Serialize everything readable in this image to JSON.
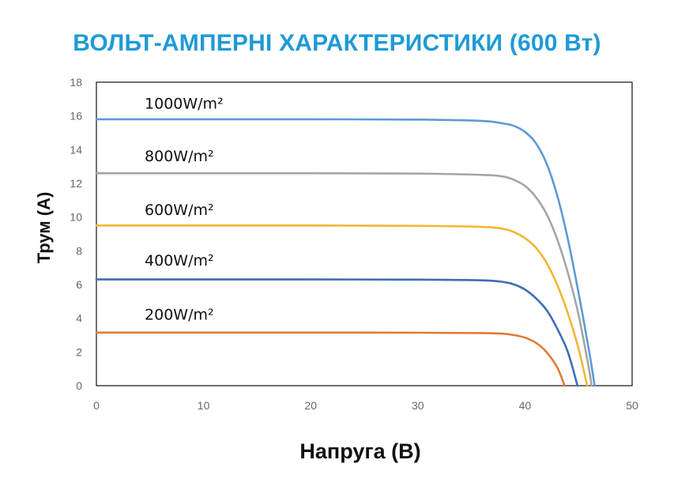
{
  "chart_data": {
    "type": "line",
    "title": "ВОЛЬТ-АМПЕРНІ ХАРАКТЕРИСТИКИ (600 Вт)",
    "xlabel": "Напруга (В)",
    "ylabel": "Трум (А)",
    "xlim": [
      0,
      50
    ],
    "ylim": [
      0,
      18
    ],
    "x_ticks": [
      "0",
      "10",
      "20",
      "30",
      "40",
      "50"
    ],
    "y_ticks": [
      "0",
      "2",
      "4",
      "6",
      "8",
      "10",
      "12",
      "14",
      "16",
      "18"
    ],
    "grid": false,
    "series": [
      {
        "name": "1000W/m²",
        "color": "#5b9bd5",
        "x": [
          0,
          10,
          20,
          30,
          36,
          38,
          39,
          40,
          41,
          42,
          43,
          44,
          45,
          46,
          46.5
        ],
        "y": [
          15.8,
          15.8,
          15.8,
          15.78,
          15.7,
          15.55,
          15.4,
          15.05,
          14.4,
          13.2,
          11.3,
          8.7,
          5.5,
          2.0,
          0
        ]
      },
      {
        "name": "800W/m²",
        "color": "#a5a5a5",
        "x": [
          0,
          10,
          20,
          30,
          36,
          38,
          39,
          40,
          41,
          42,
          43,
          44,
          45,
          46,
          46.2
        ],
        "y": [
          12.6,
          12.6,
          12.6,
          12.58,
          12.5,
          12.4,
          12.2,
          11.85,
          11.2,
          10.2,
          8.7,
          6.7,
          4.2,
          0.9,
          0
        ]
      },
      {
        "name": "600W/m²",
        "color": "#f2b632",
        "x": [
          0,
          10,
          20,
          30,
          36,
          38,
          39,
          40,
          41,
          42,
          43,
          44,
          45,
          45.8
        ],
        "y": [
          9.5,
          9.5,
          9.5,
          9.48,
          9.42,
          9.3,
          9.1,
          8.75,
          8.2,
          7.3,
          6.0,
          4.3,
          2.2,
          0
        ]
      },
      {
        "name": "400W/m²",
        "color": "#3d6db5",
        "x": [
          0,
          10,
          20,
          30,
          36,
          38,
          39,
          40,
          41,
          42,
          43,
          44,
          44.9
        ],
        "y": [
          6.3,
          6.3,
          6.3,
          6.29,
          6.25,
          6.15,
          6.0,
          5.7,
          5.2,
          4.5,
          3.4,
          2.0,
          0
        ]
      },
      {
        "name": "200W/m²",
        "color": "#e07b39",
        "x": [
          0,
          10,
          20,
          30,
          36,
          38,
          39,
          40,
          41,
          42,
          43,
          43.7
        ],
        "y": [
          3.15,
          3.15,
          3.15,
          3.14,
          3.12,
          3.08,
          3.0,
          2.85,
          2.55,
          2.0,
          1.1,
          0
        ]
      }
    ],
    "series_labels": [
      {
        "text": "1000W/m²",
        "x": 4.5,
        "y": 16.7
      },
      {
        "text": "800W/m²",
        "x": 4.5,
        "y": 13.6
      },
      {
        "text": "600W/m²",
        "x": 4.5,
        "y": 10.4
      },
      {
        "text": "400W/m²",
        "x": 4.5,
        "y": 7.4
      },
      {
        "text": "200W/m²",
        "x": 4.5,
        "y": 4.2
      }
    ]
  }
}
